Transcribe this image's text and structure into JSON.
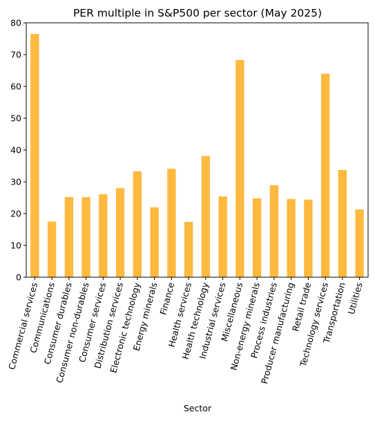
{
  "chart_data": {
    "type": "bar",
    "title": "PER multiple in S&P500 per sector (May 2025)",
    "xlabel": "Sector",
    "ylabel": "",
    "ylim": [
      0,
      80
    ],
    "yticks": [
      0,
      10,
      20,
      30,
      40,
      50,
      60,
      70,
      80
    ],
    "grid": false,
    "bar_color": "#FFB93F",
    "categories": [
      "Commercial services",
      "Communications",
      "Consumer durables",
      "Consumer non-durables",
      "Consumer services",
      "Distribution services",
      "Electronic technology",
      "Energy minerals",
      "Finance",
      "Health services",
      "Health technology",
      "Industrial services",
      "Miscellaneous",
      "Non-energy minerals",
      "Process industries",
      "Producer manufacturing",
      "Retail trade",
      "Technology services",
      "Transportation",
      "Utilities"
    ],
    "values": [
      76.5,
      17.5,
      25.2,
      25.2,
      26.1,
      28.0,
      33.3,
      22.0,
      34.1,
      17.4,
      38.1,
      25.4,
      68.3,
      24.8,
      28.9,
      24.6,
      24.4,
      64.0,
      33.7,
      21.3
    ]
  }
}
